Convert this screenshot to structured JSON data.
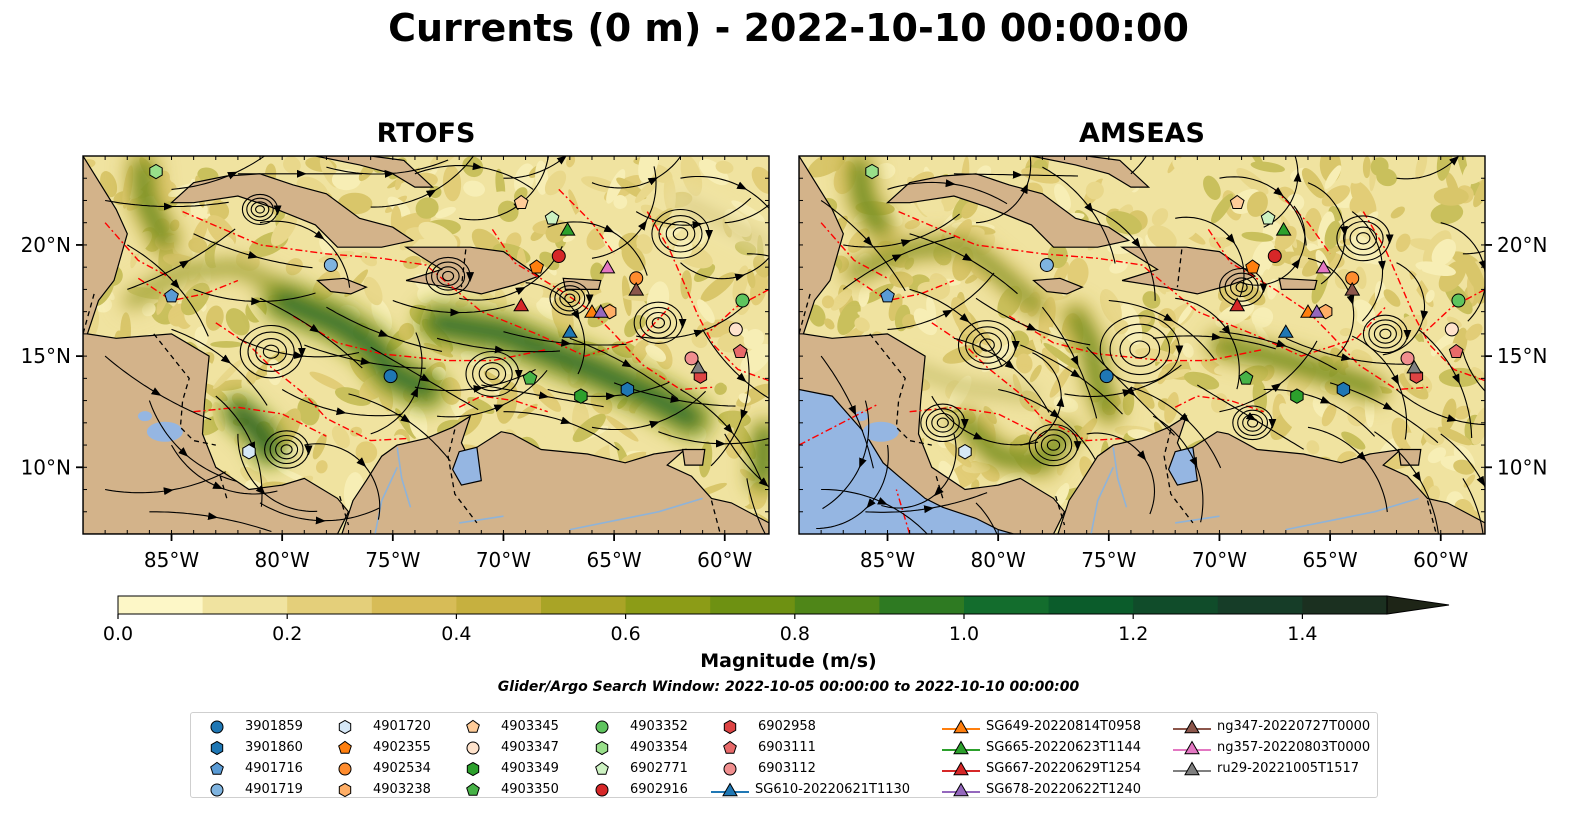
{
  "title": "Currents (0 m) - 2022-10-10 00:00:00",
  "panels": [
    {
      "title": "RTOFS"
    },
    {
      "title": "AMSEAS"
    }
  ],
  "colors": {
    "land": "#d3b38a",
    "water_extra": "#95b6e2",
    "eez": "#ff0000",
    "colormap": [
      "#fdf7c7",
      "#f0e3a0",
      "#e4cf7a",
      "#d7bc57",
      "#c6b03f",
      "#a9a426",
      "#8c9c17",
      "#6e9112",
      "#4f8618",
      "#2e7a22",
      "#136d2d",
      "#0b5c2b",
      "#104c2a",
      "#163d28",
      "#1b3020",
      "#1e2517"
    ]
  },
  "chart_data": [
    {
      "type": "heatmap",
      "subtype": "map-streamlines",
      "panel": "RTOFS",
      "xlim": [
        -89,
        -58
      ],
      "ylim": [
        7,
        24
      ],
      "xticks": [
        -85,
        -80,
        -75,
        -70,
        -65,
        -60
      ],
      "xtick_labels": [
        "85°W",
        "80°W",
        "75°W",
        "70°W",
        "65°W",
        "60°W"
      ],
      "yticks": [
        10,
        15,
        20
      ],
      "ytick_labels": [
        "10°N",
        "15°N",
        "20°N"
      ]
    },
    {
      "type": "heatmap",
      "subtype": "map-streamlines",
      "panel": "AMSEAS",
      "xlim": [
        -89,
        -58
      ],
      "ylim": [
        7,
        24
      ],
      "xticks": [
        -85,
        -80,
        -75,
        -70,
        -65,
        -60
      ],
      "xtick_labels": [
        "85°W",
        "80°W",
        "75°W",
        "70°W",
        "65°W",
        "60°W"
      ],
      "yticks": [
        10,
        15,
        20
      ],
      "ytick_labels": [
        "10°N",
        "15°N",
        "20°N"
      ]
    }
  ],
  "colorbar": {
    "label": "Magnitude (m/s)",
    "min": 0.0,
    "max": 1.5,
    "ticks": [
      0.0,
      0.2,
      0.4,
      0.6,
      0.8,
      1.0,
      1.2,
      1.4
    ],
    "tick_labels": [
      "0.0",
      "0.2",
      "0.4",
      "0.6",
      "0.8",
      "1.0",
      "1.2",
      "1.4"
    ],
    "extend": "max"
  },
  "search_window": "Glider/Argo Search Window: 2022-10-05 00:00:00 to 2022-10-10 00:00:00",
  "markers": [
    {
      "id": "3901859",
      "shape": "circle",
      "color": "#1f77b4",
      "lon": -75.1,
      "lat": 14.1
    },
    {
      "id": "3901860",
      "shape": "hexagon",
      "color": "#1f77b4",
      "lon": -64.4,
      "lat": 13.5
    },
    {
      "id": "4901716",
      "shape": "pentagon",
      "color": "#5a9bd5",
      "lon": -85.0,
      "lat": 17.7
    },
    {
      "id": "4901719",
      "shape": "circle",
      "color": "#7fb4e0",
      "lon": -77.8,
      "lat": 19.1
    },
    {
      "id": "4901720",
      "shape": "hexagon",
      "color": "#d6e8f7",
      "lon": -81.5,
      "lat": 10.7
    },
    {
      "id": "4902355",
      "shape": "pentagon",
      "color": "#ff7f0e",
      "lon": -68.5,
      "lat": 19.0
    },
    {
      "id": "4902534",
      "shape": "circle",
      "color": "#ff8c2e",
      "lon": -64.0,
      "lat": 18.5
    },
    {
      "id": "4903238",
      "shape": "hexagon",
      "color": "#ffae66",
      "lon": -65.2,
      "lat": 17.0
    },
    {
      "id": "4903345",
      "shape": "pentagon",
      "color": "#ffcc99",
      "lon": -69.2,
      "lat": 21.9
    },
    {
      "id": "4903347",
      "shape": "circle",
      "color": "#ffe3cc",
      "lon": -59.5,
      "lat": 16.2
    },
    {
      "id": "4903349",
      "shape": "hexagon",
      "color": "#2ca02c",
      "lon": -66.5,
      "lat": 13.2
    },
    {
      "id": "4903350",
      "shape": "pentagon",
      "color": "#47b347",
      "lon": -68.8,
      "lat": 14.0
    },
    {
      "id": "4903352",
      "shape": "circle",
      "color": "#5ec45e",
      "lon": -59.2,
      "lat": 17.5
    },
    {
      "id": "4903354",
      "shape": "hexagon",
      "color": "#98df8a",
      "lon": -85.7,
      "lat": 23.3
    },
    {
      "id": "6902771",
      "shape": "pentagon",
      "color": "#cdf2c2",
      "lon": -67.8,
      "lat": 21.2
    },
    {
      "id": "6902916",
      "shape": "circle",
      "color": "#d62728",
      "lon": -67.5,
      "lat": 19.5
    },
    {
      "id": "6902958",
      "shape": "hexagon",
      "color": "#dd4444",
      "lon": -61.1,
      "lat": 14.1
    },
    {
      "id": "6903111",
      "shape": "pentagon",
      "color": "#e86a6a",
      "lon": -59.3,
      "lat": 15.2
    },
    {
      "id": "6903112",
      "shape": "circle",
      "color": "#f08f8f",
      "lon": -61.5,
      "lat": 14.9
    },
    {
      "id": "SG610-20220621T1130",
      "shape": "triangle",
      "color": "#1f77b4",
      "line": true,
      "lon": -67.0,
      "lat": 16.1
    },
    {
      "id": "SG649-20220814T0958",
      "shape": "triangle",
      "color": "#ff7f0e",
      "line": true,
      "lon": -66.0,
      "lat": 17.0
    },
    {
      "id": "SG665-20220623T1144",
      "shape": "triangle",
      "color": "#2ca02c",
      "line": true,
      "lon": -67.1,
      "lat": 20.7
    },
    {
      "id": "SG667-20220629T1254",
      "shape": "triangle",
      "color": "#d62728",
      "line": true,
      "lon": -69.2,
      "lat": 17.3
    },
    {
      "id": "SG678-20220622T1240",
      "shape": "triangle",
      "color": "#9467bd",
      "line": true,
      "lon": -65.6,
      "lat": 17.0
    },
    {
      "id": "ng347-20220727T0000",
      "shape": "triangle",
      "color": "#8c564b",
      "line": true,
      "lon": -64.0,
      "lat": 18.0
    },
    {
      "id": "ng357-20220803T0000",
      "shape": "triangle",
      "color": "#e377c2",
      "line": true,
      "lon": -65.3,
      "lat": 19.0
    },
    {
      "id": "ru29-20221005T1517",
      "shape": "triangle",
      "color": "#7f7f7f",
      "line": true,
      "lon": -61.2,
      "lat": 14.5
    }
  ]
}
